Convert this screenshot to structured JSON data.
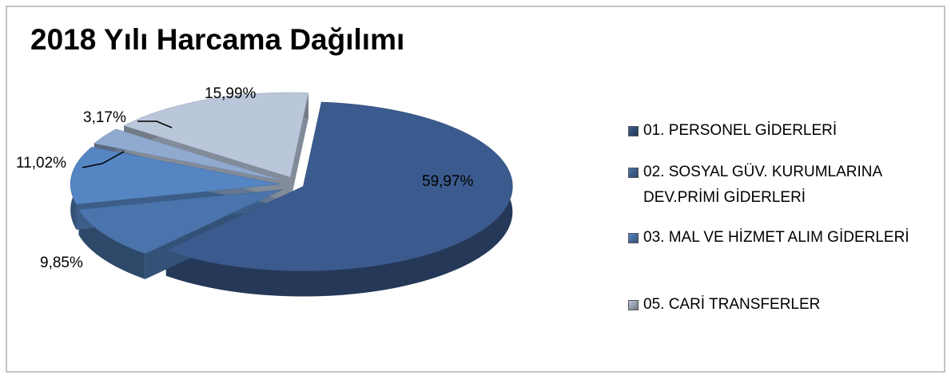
{
  "chart_data": {
    "type": "pie3d",
    "title": "2018 Yılı Harcama Dağılımı",
    "categories": [
      "01.  PERSONEL GİDERLERİ",
      "02.  SOSYAL GÜV. KURUMLARINA DEV.PRİMİ GİDERLERİ",
      "03.  MAL VE HİZMET ALIM GİDERLERİ",
      null,
      "05.  CARİ TRANSFERLER"
    ],
    "values": [
      59.97,
      9.85,
      11.02,
      3.17,
      15.99
    ],
    "value_labels": [
      "59,97%",
      "9,85%",
      "11,02%",
      "3,17%",
      "15,99%"
    ],
    "colors": [
      "#3b5b8e",
      "#4a74ab",
      "#5585c2",
      "#8fa9cf",
      "#bac6da"
    ],
    "legend": "right"
  }
}
